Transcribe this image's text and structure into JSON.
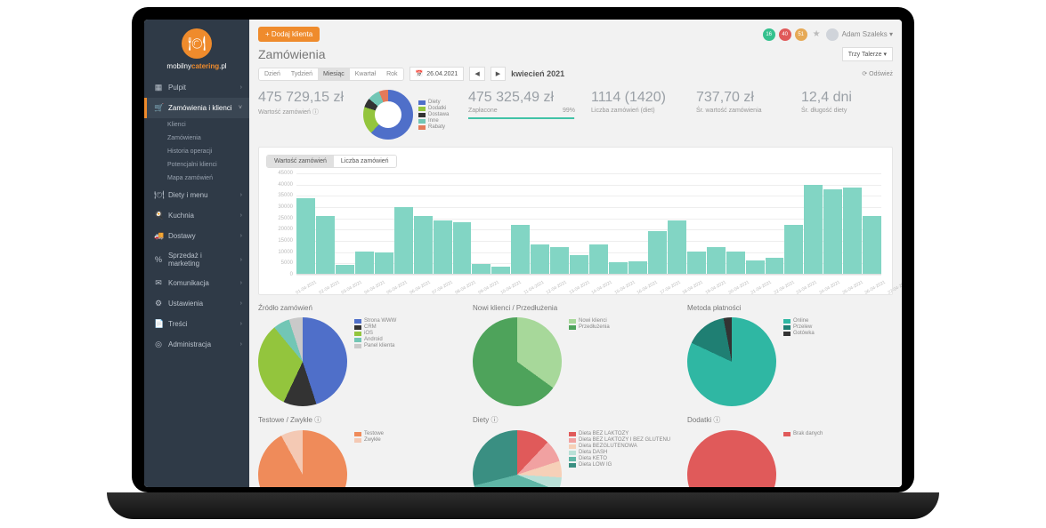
{
  "brand": {
    "name_pre": "mobilny",
    "name_strong": "catering",
    "name_suffix": ".pl"
  },
  "sidebar": {
    "items": [
      {
        "icon": "▦",
        "label": "Pulpit"
      },
      {
        "icon": "🛒",
        "label": "Zamówienia i klienci",
        "active": true,
        "sub": [
          "Klienci",
          "Zamówienia",
          "Historia operacji",
          "Potencjalni klienci",
          "Mapa zamówień"
        ]
      },
      {
        "icon": "🍽",
        "label": "Diety i menu"
      },
      {
        "icon": "🍳",
        "label": "Kuchnia"
      },
      {
        "icon": "🚚",
        "label": "Dostawy"
      },
      {
        "icon": "%",
        "label": "Sprzedaż i marketing"
      },
      {
        "icon": "✉",
        "label": "Komunikacja"
      },
      {
        "icon": "⚙",
        "label": "Ustawienia"
      },
      {
        "icon": "📄",
        "label": "Treści"
      },
      {
        "icon": "◎",
        "label": "Administracja"
      }
    ]
  },
  "topbar": {
    "add_btn": "+ Dodaj klienta",
    "badges": [
      {
        "txt": "163+4",
        "c": "#35c18e"
      },
      {
        "txt": "40+2",
        "c": "#e05a5a"
      },
      {
        "txt": "516-1",
        "c": "#e6a956"
      }
    ],
    "user": "Adam Szaleks ▾"
  },
  "header": {
    "title": "Zamówienia",
    "tabs": [
      "Dzień",
      "Tydzień",
      "Miesiąc",
      "Kwartał",
      "Rok"
    ],
    "active_tab": 2,
    "date": "26.04.2021",
    "period": "kwiecień 2021",
    "selector": "Trzy Talerze ▾",
    "refresh": "⟳ Odśwież"
  },
  "kpis": [
    {
      "value": "475 729,15 zł",
      "label": "Wartość zamówień  ⓘ"
    },
    {
      "ring": true,
      "colors": [
        "#4f6fc9",
        "#93c53d",
        "#333333",
        "#72c6b5",
        "#e47a5a"
      ],
      "pct": [
        62,
        18,
        6,
        8,
        6
      ],
      "legend": [
        "Diety",
        "Dodatki",
        "Dostawa",
        "Inne",
        "Rabaty"
      ]
    },
    {
      "value": "475 325,49 zł",
      "label": "Zapłacone",
      "bar_pct": 99,
      "bar_txt": "99%"
    },
    {
      "value": "1114 (1420)",
      "label": "Liczba zamówień (diet)"
    },
    {
      "value": "737,70 zł",
      "label": "Śr. wartość zamówienia"
    },
    {
      "value": "12,4 dni",
      "label": "Śr. długość diety"
    }
  ],
  "bar_chart": {
    "tabs": [
      "Wartość zamówień",
      "Liczba zamówień"
    ],
    "active": 0,
    "ymax": 45000,
    "ystep": 5000,
    "color": "#82d5c4",
    "categories": [
      "01-04-2021",
      "02-04-2021",
      "03-04-2021",
      "04-04-2021",
      "05-04-2021",
      "06-04-2021",
      "07-04-2021",
      "08-04-2021",
      "09-04-2021",
      "10-04-2021",
      "11-04-2021",
      "12-04-2021",
      "13-04-2021",
      "14-04-2021",
      "15-04-2021",
      "16-04-2021",
      "17-04-2021",
      "18-04-2021",
      "19-04-2021",
      "20-04-2021",
      "21-04-2021",
      "22-04-2021",
      "23-04-2021",
      "24-04-2021",
      "25-04-2021",
      "26-04-2021",
      "27-04-2021",
      "28-04-2021",
      "29-04-2021",
      "30-04-2021"
    ],
    "values": [
      34000,
      26000,
      4000,
      10000,
      9500,
      30000,
      26000,
      24000,
      23000,
      4500,
      3000,
      22000,
      13000,
      12000,
      8500,
      13000,
      5000,
      5500,
      19000,
      24000,
      10000,
      12000,
      10000,
      6000,
      7000,
      22000,
      40000,
      38000,
      38500,
      26000
    ]
  },
  "pies_row1": [
    {
      "title": "Źródło zamówień",
      "legend": [
        "Strona WWW",
        "CRM",
        "iOS",
        "Android",
        "Panel klienta"
      ],
      "colors": [
        "#4f6fc9",
        "#333333",
        "#93c53d",
        "#72c6b5",
        "#c9c9c9"
      ],
      "pct": [
        45,
        12,
        32,
        6,
        5
      ]
    },
    {
      "title": "Nowi klienci / Przedłużenia",
      "legend": [
        "Nowi klienci",
        "Przedłużenia"
      ],
      "colors": [
        "#a7d89a",
        "#4ea35b"
      ],
      "pct": [
        35,
        65
      ]
    },
    {
      "title": "Metoda płatności",
      "legend": [
        "Online",
        "Przelew",
        "Gotówka"
      ],
      "colors": [
        "#2fb7a3",
        "#1f7f73",
        "#333333"
      ],
      "pct": [
        82,
        15,
        3
      ]
    }
  ],
  "pies_row2": [
    {
      "title": "Testowe / Zwykłe  ⓘ",
      "legend": [
        "Testowe",
        "Zwykłe"
      ],
      "colors": [
        "#ef8b5a",
        "#f4c9b4"
      ],
      "pct": [
        92,
        8
      ]
    },
    {
      "title": "Diety  ⓘ",
      "legend": [
        "Dieta BEZ LAKTOZY",
        "Dieta BEZ LAKTOZY I BEZ GLUTENU",
        "Dieta BEZGLUTENOWA",
        "Dieta DASH",
        "Dieta KETO",
        "Dieta LOW IG"
      ],
      "colors": [
        "#e05a5a",
        "#f1a1a1",
        "#f6d0b8",
        "#b9e0d7",
        "#5fb6a6",
        "#3a8f82"
      ],
      "pct": [
        12,
        8,
        6,
        5,
        40,
        29
      ]
    },
    {
      "title": "Dodatki  ⓘ",
      "legend": [
        "Brak danych"
      ],
      "colors": [
        "#e05a5a"
      ],
      "pct": [
        100
      ]
    }
  ]
}
